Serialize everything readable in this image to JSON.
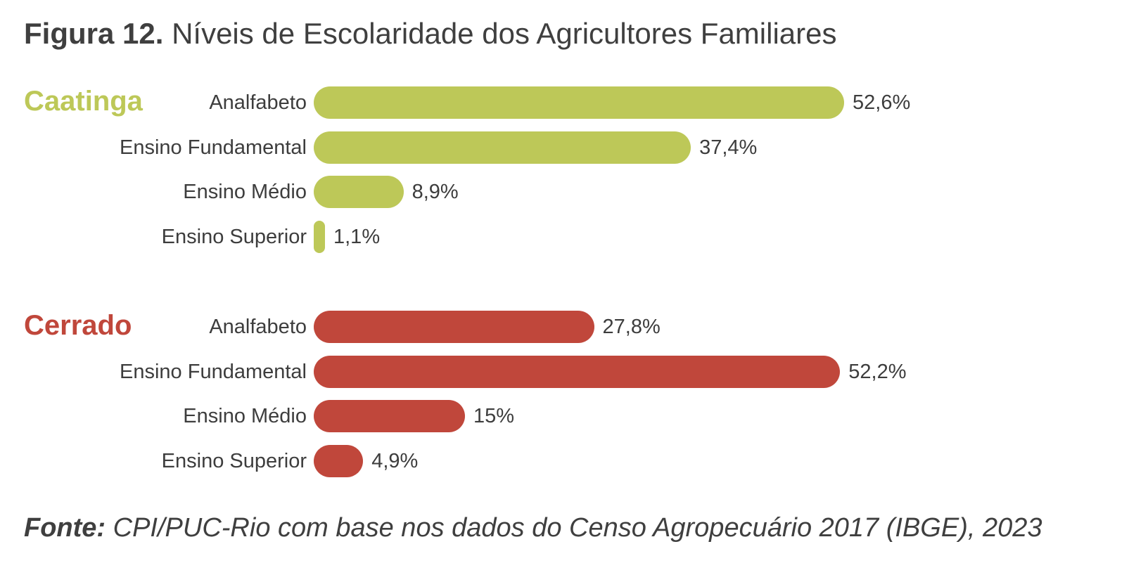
{
  "title": {
    "prefix": "Figura 12.",
    "text": "Níveis de Escolaridade dos Agricultores Familiares"
  },
  "source": {
    "prefix": "Fonte:",
    "text": "CPI/PUC-Rio com base nos dados do Censo Agropecuário 2017 (IBGE), 2023"
  },
  "colors": {
    "caatinga": "#bdc858",
    "cerrado": "#c0473b",
    "text": "#3d3d3d"
  },
  "chart_data": {
    "type": "bar",
    "orientation": "horizontal",
    "title": "Figura 12. Níveis de Escolaridade dos Agricultores Familiares",
    "categories": [
      "Analfabeto",
      "Ensino Fundamental",
      "Ensino Médio",
      "Ensino Superior"
    ],
    "unit": "%",
    "xlim": [
      0,
      52.6
    ],
    "groups": [
      {
        "name": "Caatinga",
        "color": "#bdc858",
        "values": [
          52.6,
          37.4,
          8.9,
          1.1
        ],
        "value_labels": [
          "52,6%",
          "37,4%",
          "8,9%",
          "1,1%"
        ]
      },
      {
        "name": "Cerrado",
        "color": "#c0473b",
        "values": [
          27.8,
          52.2,
          15,
          4.9
        ],
        "value_labels": [
          "27,8%",
          "52,2%",
          "15%",
          "4,9%"
        ]
      }
    ]
  }
}
